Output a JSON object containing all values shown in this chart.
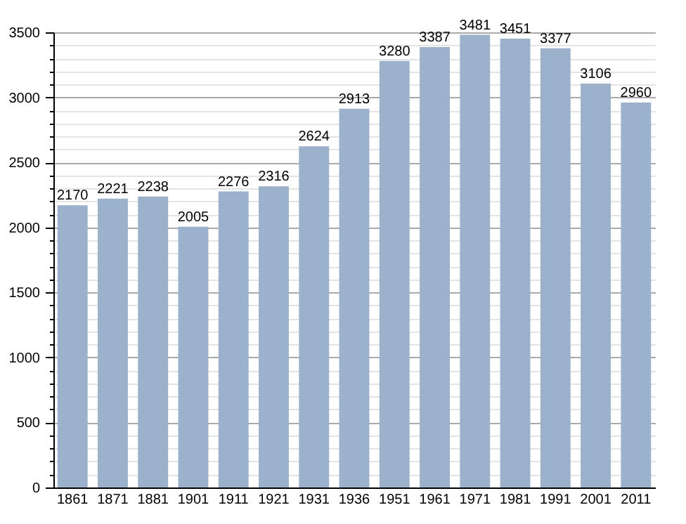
{
  "chart_data": {
    "type": "bar",
    "categories": [
      "1861",
      "1871",
      "1881",
      "1901",
      "1911",
      "1921",
      "1931",
      "1936",
      "1951",
      "1961",
      "1971",
      "1981",
      "1991",
      "2001",
      "2011"
    ],
    "values": [
      2170,
      2221,
      2238,
      2005,
      2276,
      2316,
      2624,
      2913,
      3280,
      3387,
      3481,
      3451,
      3377,
      3106,
      2960
    ],
    "color": "#9cb2cc",
    "ylim": [
      0,
      3500
    ],
    "yticks": [
      0,
      {
        "value": 100,
        "label": null
      },
      {
        "value": 200,
        "label": null
      },
      {
        "value": 300,
        "label": null
      },
      {
        "value": 400,
        "label": null
      },
      500,
      {
        "value": 600,
        "label": null
      },
      {
        "value": 700,
        "label": null
      },
      {
        "value": 800,
        "label": null
      },
      {
        "value": 900,
        "label": null
      },
      1000,
      {
        "value": 1100,
        "label": null
      },
      {
        "value": 1200,
        "label": null
      },
      {
        "value": 1300,
        "label": null
      },
      {
        "value": 1400,
        "label": null
      },
      1500,
      {
        "value": 1600,
        "label": null
      },
      {
        "value": 1700,
        "label": null
      },
      {
        "value": 1800,
        "label": null
      },
      {
        "value": 1900,
        "label": null
      },
      2000,
      {
        "value": 2100,
        "label": null
      },
      {
        "value": 2200,
        "label": null
      },
      {
        "value": 2300,
        "label": null
      },
      {
        "value": 2400,
        "label": null
      },
      2500,
      {
        "value": 2600,
        "label": null
      },
      {
        "value": 2700,
        "label": null
      },
      {
        "value": 2800,
        "label": null
      },
      {
        "value": 2900,
        "label": null
      },
      3000,
      {
        "value": 3100,
        "label": null
      },
      {
        "value": 3200,
        "label": null
      },
      {
        "value": 3300,
        "label": null
      },
      {
        "value": 3400,
        "label": null
      },
      3500
    ],
    "grid": "y",
    "data_labels": true
  }
}
